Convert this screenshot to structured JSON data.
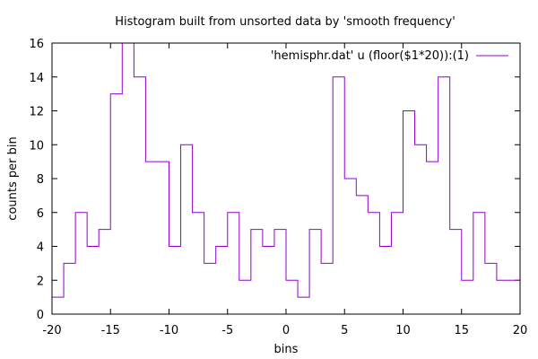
{
  "chart_data": {
    "type": "line",
    "style": "step",
    "title": "Histogram built from unsorted data by 'smooth frequency'",
    "xlabel": "bins",
    "ylabel": "counts per bin",
    "xlim": [
      -20,
      20
    ],
    "ylim": [
      0,
      16
    ],
    "xticks": [
      -20,
      -15,
      -10,
      -5,
      0,
      5,
      10,
      15,
      20
    ],
    "yticks": [
      0,
      2,
      4,
      6,
      8,
      10,
      12,
      14,
      16
    ],
    "grid": false,
    "legend_position": "top-right",
    "series": [
      {
        "name": "'hemisphr.dat' u (floor($1*20)):(1)",
        "color": "#9400d3",
        "x": [
          -20,
          -19,
          -18,
          -17,
          -16,
          -15,
          -14,
          -13,
          -12,
          -11,
          -10,
          -9,
          -8,
          -7,
          -6,
          -5,
          -4,
          -3,
          -2,
          -1,
          0,
          1,
          2,
          3,
          4,
          5,
          6,
          7,
          8,
          9,
          10,
          11,
          12,
          13,
          14,
          15,
          16,
          17,
          18,
          19
        ],
        "y": [
          1,
          3,
          6,
          4,
          5,
          13,
          16,
          14,
          9,
          9,
          4,
          10,
          6,
          3,
          4,
          6,
          2,
          5,
          4,
          5,
          2,
          1,
          5,
          3,
          14,
          8,
          7,
          6,
          4,
          6,
          12,
          10,
          9,
          14,
          5,
          2,
          6,
          3,
          2,
          2
        ]
      }
    ]
  }
}
